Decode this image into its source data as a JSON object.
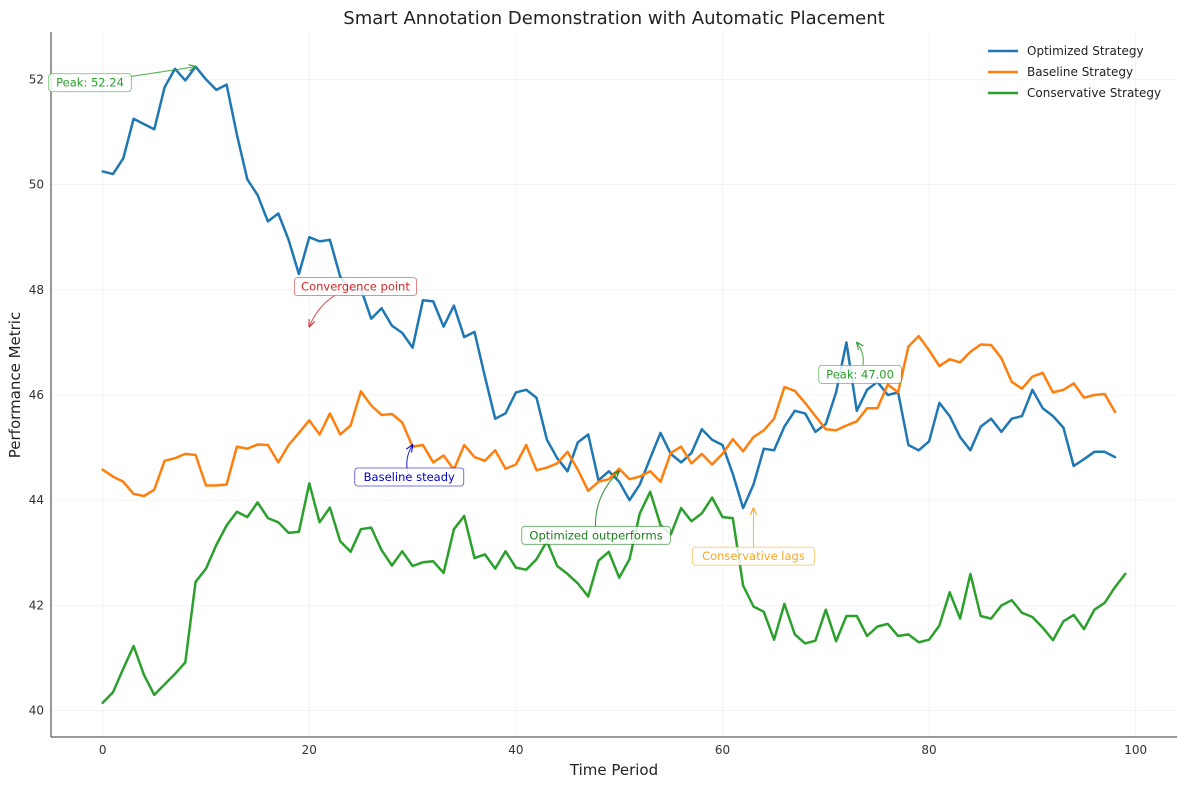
{
  "chart_data": {
    "type": "line",
    "title": "Smart Annotation Demonstration with Automatic Placement",
    "xlabel": "Time Period",
    "ylabel": "Performance Metric",
    "xlim": [
      -5,
      104
    ],
    "ylim": [
      39.5,
      52.9
    ],
    "x_ticks": [
      0,
      20,
      40,
      60,
      80,
      100
    ],
    "y_ticks": [
      40,
      42,
      44,
      46,
      48,
      50,
      52
    ],
    "grid": true,
    "legend_position": "top-right",
    "series": [
      {
        "name": "Optimized Strategy",
        "color": "#1f77b4",
        "values": [
          50.25,
          50.2,
          50.5,
          51.25,
          51.15,
          51.05,
          51.85,
          52.2,
          51.98,
          52.24,
          52.0,
          51.8,
          51.9,
          50.95,
          50.1,
          49.8,
          49.3,
          49.45,
          48.95,
          48.3,
          49.0,
          48.92,
          48.95,
          48.25,
          47.98,
          48.02,
          47.45,
          47.65,
          47.32,
          47.18,
          46.9,
          47.8,
          47.78,
          47.3,
          47.7,
          47.1,
          47.2,
          46.35,
          45.55,
          45.65,
          46.05,
          46.1,
          45.95,
          45.15,
          44.8,
          44.55,
          45.1,
          45.25,
          44.38,
          44.55,
          44.35,
          44.0,
          44.3,
          44.8,
          45.28,
          44.88,
          44.72,
          44.9,
          45.35,
          45.15,
          45.05,
          44.5,
          43.85,
          44.3,
          44.98,
          44.95,
          45.4,
          45.7,
          45.65,
          45.3,
          45.45,
          46.05,
          47.0,
          45.7,
          46.1,
          46.25,
          46.0,
          46.05,
          45.05,
          44.95,
          45.12,
          45.85,
          45.6,
          45.2,
          44.95,
          45.4,
          45.55,
          45.3,
          45.55,
          45.6,
          46.1,
          45.75,
          45.6,
          45.38,
          44.65,
          44.78,
          44.92,
          44.92,
          44.82
        ]
      },
      {
        "name": "Baseline Strategy",
        "color": "#ff7f0e",
        "values": [
          44.58,
          44.45,
          44.35,
          44.12,
          44.08,
          44.2,
          44.75,
          44.8,
          44.88,
          44.86,
          44.28,
          44.28,
          44.3,
          45.02,
          44.98,
          45.06,
          45.05,
          44.72,
          45.05,
          45.28,
          45.52,
          45.25,
          45.65,
          45.25,
          45.42,
          46.07,
          45.8,
          45.62,
          45.64,
          45.48,
          45.02,
          45.05,
          44.72,
          44.85,
          44.58,
          45.05,
          44.82,
          44.75,
          44.95,
          44.6,
          44.68,
          45.05,
          44.57,
          44.62,
          44.7,
          44.92,
          44.58,
          44.18,
          44.35,
          44.4,
          44.6,
          44.4,
          44.45,
          44.55,
          44.35,
          44.9,
          45.02,
          44.7,
          44.88,
          44.68,
          44.88,
          45.16,
          44.93,
          45.2,
          45.33,
          45.55,
          46.15,
          46.08,
          45.85,
          45.6,
          45.35,
          45.33,
          45.42,
          45.5,
          45.75,
          45.75,
          46.2,
          46.05,
          46.92,
          47.12,
          46.85,
          46.55,
          46.68,
          46.62,
          46.82,
          46.96,
          46.95,
          46.7,
          46.25,
          46.12,
          46.35,
          46.42,
          46.05,
          46.1,
          46.22,
          45.95,
          46.0,
          46.02,
          45.68
        ]
      },
      {
        "name": "Conservative Strategy",
        "color": "#2ca02c",
        "values": [
          40.15,
          40.35,
          40.8,
          41.23,
          40.68,
          40.3,
          40.5,
          40.7,
          40.92,
          42.45,
          42.7,
          43.15,
          43.52,
          43.78,
          43.68,
          43.96,
          43.66,
          43.58,
          43.38,
          43.4,
          44.32,
          43.58,
          43.86,
          43.22,
          43.02,
          43.45,
          43.48,
          43.05,
          42.76,
          43.03,
          42.75,
          42.82,
          42.84,
          42.62,
          43.45,
          43.7,
          42.9,
          42.97,
          42.7,
          43.03,
          42.72,
          42.68,
          42.88,
          43.22,
          42.75,
          42.6,
          42.42,
          42.17,
          42.85,
          43.02,
          42.53,
          42.88,
          43.75,
          44.16,
          43.53,
          43.35,
          43.85,
          43.6,
          43.75,
          44.05,
          43.68,
          43.66,
          42.38,
          41.98,
          41.88,
          41.35,
          42.03,
          41.45,
          41.28,
          41.33,
          41.92,
          41.32,
          41.8,
          41.8,
          41.42,
          41.6,
          41.65,
          41.42,
          41.45,
          41.3,
          41.35,
          41.62,
          42.25,
          41.75,
          42.6,
          41.8,
          41.75,
          42.0,
          42.1,
          41.86,
          41.78,
          41.58,
          41.34,
          41.7,
          41.82,
          41.55,
          41.92,
          42.05,
          42.35,
          42.6
        ]
      }
    ],
    "annotations": [
      {
        "text": "Peak: 52.24",
        "color": "#2ca02c",
        "target": [
          9,
          52.24
        ]
      },
      {
        "text": "Convergence point",
        "color": "#d62728",
        "target": [
          20,
          47.3
        ]
      },
      {
        "text": "Baseline steady",
        "color": "#0000cc",
        "target": [
          30,
          45.05
        ]
      },
      {
        "text": "Optimized outperforms",
        "color": "#1a7f1a",
        "target": [
          50,
          44.55
        ]
      },
      {
        "text": "Peak: 47.00",
        "color": "#2ca02c",
        "target": [
          73,
          47.0
        ]
      },
      {
        "text": "Conservative lags",
        "color": "#f5a623",
        "target": [
          63,
          43.85
        ]
      }
    ]
  }
}
